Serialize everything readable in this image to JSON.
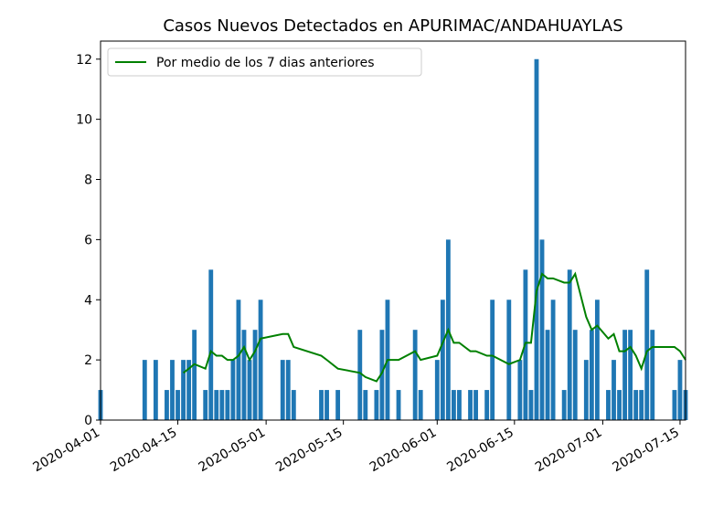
{
  "chart_data": {
    "type": "bar",
    "title": "Casos Nuevos Detectados en APURIMAC/ANDAHUAYLAS",
    "xlabel": "",
    "ylabel": "",
    "x_start": "2020-04-01",
    "x_end": "2020-07-16",
    "ylim": [
      0,
      12.6
    ],
    "y_ticks": [
      0,
      2,
      4,
      6,
      8,
      10,
      12
    ],
    "x_ticks": [
      "2020-04-01",
      "2020-04-15",
      "2020-05-01",
      "2020-05-15",
      "2020-06-01",
      "2020-06-15",
      "2020-07-01",
      "2020-07-15"
    ],
    "grid": false,
    "legend_position": "top-left",
    "bar_color": "#1f77b4",
    "line_color": "#008000",
    "series": [
      {
        "type": "bar",
        "points": [
          [
            "2020-04-01",
            1
          ],
          [
            "2020-04-09",
            2
          ],
          [
            "2020-04-11",
            2
          ],
          [
            "2020-04-13",
            1
          ],
          [
            "2020-04-14",
            2
          ],
          [
            "2020-04-15",
            1
          ],
          [
            "2020-04-16",
            2
          ],
          [
            "2020-04-17",
            2
          ],
          [
            "2020-04-18",
            3
          ],
          [
            "2020-04-20",
            1
          ],
          [
            "2020-04-21",
            5
          ],
          [
            "2020-04-22",
            1
          ],
          [
            "2020-04-23",
            1
          ],
          [
            "2020-04-24",
            1
          ],
          [
            "2020-04-25",
            2
          ],
          [
            "2020-04-26",
            4
          ],
          [
            "2020-04-27",
            3
          ],
          [
            "2020-04-28",
            2
          ],
          [
            "2020-04-29",
            3
          ],
          [
            "2020-04-30",
            4
          ],
          [
            "2020-05-04",
            2
          ],
          [
            "2020-05-05",
            2
          ],
          [
            "2020-05-06",
            1
          ],
          [
            "2020-05-11",
            1
          ],
          [
            "2020-05-12",
            1
          ],
          [
            "2020-05-14",
            1
          ],
          [
            "2020-05-18",
            3
          ],
          [
            "2020-05-19",
            1
          ],
          [
            "2020-05-21",
            1
          ],
          [
            "2020-05-22",
            3
          ],
          [
            "2020-05-23",
            4
          ],
          [
            "2020-05-25",
            1
          ],
          [
            "2020-05-28",
            3
          ],
          [
            "2020-05-29",
            1
          ],
          [
            "2020-06-01",
            2
          ],
          [
            "2020-06-02",
            4
          ],
          [
            "2020-06-03",
            6
          ],
          [
            "2020-06-04",
            1
          ],
          [
            "2020-06-05",
            1
          ],
          [
            "2020-06-07",
            1
          ],
          [
            "2020-06-08",
            1
          ],
          [
            "2020-06-10",
            1
          ],
          [
            "2020-06-11",
            4
          ],
          [
            "2020-06-14",
            4
          ],
          [
            "2020-06-16",
            2
          ],
          [
            "2020-06-17",
            5
          ],
          [
            "2020-06-18",
            1
          ],
          [
            "2020-06-19",
            12
          ],
          [
            "2020-06-20",
            6
          ],
          [
            "2020-06-21",
            3
          ],
          [
            "2020-06-22",
            4
          ],
          [
            "2020-06-24",
            1
          ],
          [
            "2020-06-25",
            5
          ],
          [
            "2020-06-26",
            3
          ],
          [
            "2020-06-28",
            2
          ],
          [
            "2020-06-29",
            3
          ],
          [
            "2020-06-30",
            4
          ],
          [
            "2020-07-02",
            1
          ],
          [
            "2020-07-03",
            2
          ],
          [
            "2020-07-04",
            1
          ],
          [
            "2020-07-05",
            3
          ],
          [
            "2020-07-06",
            3
          ],
          [
            "2020-07-07",
            1
          ],
          [
            "2020-07-08",
            1
          ],
          [
            "2020-07-09",
            5
          ],
          [
            "2020-07-10",
            3
          ],
          [
            "2020-07-14",
            1
          ],
          [
            "2020-07-15",
            2
          ],
          [
            "2020-07-16",
            1
          ]
        ]
      },
      {
        "type": "line",
        "name": "Por medio de los 7 dias anteriores",
        "points": [
          [
            "2020-04-16",
            1.57
          ],
          [
            "2020-04-17",
            1.71
          ],
          [
            "2020-04-18",
            1.86
          ],
          [
            "2020-04-20",
            1.71
          ],
          [
            "2020-04-21",
            2.29
          ],
          [
            "2020-04-22",
            2.14
          ],
          [
            "2020-04-23",
            2.14
          ],
          [
            "2020-04-24",
            2.0
          ],
          [
            "2020-04-25",
            2.0
          ],
          [
            "2020-04-26",
            2.14
          ],
          [
            "2020-04-27",
            2.43
          ],
          [
            "2020-04-28",
            2.0
          ],
          [
            "2020-04-29",
            2.29
          ],
          [
            "2020-04-30",
            2.71
          ],
          [
            "2020-05-04",
            2.86
          ],
          [
            "2020-05-05",
            2.86
          ],
          [
            "2020-05-06",
            2.43
          ],
          [
            "2020-05-11",
            2.14
          ],
          [
            "2020-05-12",
            2.0
          ],
          [
            "2020-05-14",
            1.71
          ],
          [
            "2020-05-18",
            1.57
          ],
          [
            "2020-05-19",
            1.43
          ],
          [
            "2020-05-21",
            1.29
          ],
          [
            "2020-05-22",
            1.57
          ],
          [
            "2020-05-23",
            2.0
          ],
          [
            "2020-05-25",
            2.0
          ],
          [
            "2020-05-28",
            2.29
          ],
          [
            "2020-05-29",
            2.0
          ],
          [
            "2020-06-01",
            2.14
          ],
          [
            "2020-06-02",
            2.57
          ],
          [
            "2020-06-03",
            3.0
          ],
          [
            "2020-06-04",
            2.57
          ],
          [
            "2020-06-05",
            2.57
          ],
          [
            "2020-06-07",
            2.29
          ],
          [
            "2020-06-08",
            2.29
          ],
          [
            "2020-06-10",
            2.14
          ],
          [
            "2020-06-11",
            2.14
          ],
          [
            "2020-06-14",
            1.86
          ],
          [
            "2020-06-16",
            2.0
          ],
          [
            "2020-06-17",
            2.57
          ],
          [
            "2020-06-18",
            2.57
          ],
          [
            "2020-06-19",
            4.29
          ],
          [
            "2020-06-20",
            4.86
          ],
          [
            "2020-06-21",
            4.71
          ],
          [
            "2020-06-22",
            4.71
          ],
          [
            "2020-06-24",
            4.57
          ],
          [
            "2020-06-25",
            4.57
          ],
          [
            "2020-06-26",
            4.86
          ],
          [
            "2020-06-28",
            3.43
          ],
          [
            "2020-06-29",
            3.0
          ],
          [
            "2020-06-30",
            3.14
          ],
          [
            "2020-07-02",
            2.71
          ],
          [
            "2020-07-03",
            2.86
          ],
          [
            "2020-07-04",
            2.29
          ],
          [
            "2020-07-05",
            2.29
          ],
          [
            "2020-07-06",
            2.43
          ],
          [
            "2020-07-07",
            2.14
          ],
          [
            "2020-07-08",
            1.71
          ],
          [
            "2020-07-09",
            2.29
          ],
          [
            "2020-07-10",
            2.43
          ],
          [
            "2020-07-14",
            2.43
          ],
          [
            "2020-07-15",
            2.29
          ],
          [
            "2020-07-16",
            2.0
          ]
        ]
      }
    ]
  }
}
